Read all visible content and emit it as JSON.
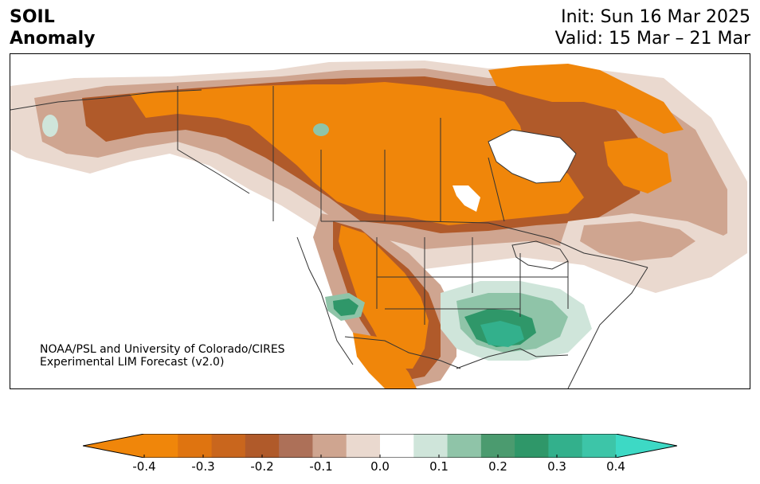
{
  "title": {
    "line1": "SOIL",
    "line2": "Anomaly",
    "init": "Init: Sun 16 Mar 2025",
    "valid": "Valid: 15 Mar – 21 Mar"
  },
  "credit": {
    "line1": "NOAA/PSL and University of Colorado/CIRES",
    "line2": "Experimental LIM Forecast (v2.0)"
  },
  "colorbar": {
    "tick_labels": [
      "-0.4",
      "-0.3",
      "-0.2",
      "-0.1",
      "0.0",
      "0.1",
      "0.2",
      "0.3",
      "0.4"
    ],
    "colors": {
      "low_extend": "#f0860a",
      "bins": [
        "#f0860a",
        "#df7410",
        "#c9661d",
        "#b05a2a",
        "#ad7058",
        "#cfa590",
        "#ead9cf",
        "#ffffff",
        "#cfe5da",
        "#8fc4a8",
        "#4b9b6f",
        "#2f9769",
        "#33b08c",
        "#3dc5a8"
      ],
      "high_extend": "#3dd9c5"
    }
  },
  "map": {
    "colors": {
      "strong_dry": "#f0860a",
      "dry": "#c9661d",
      "mid_dry": "#b05a2a",
      "light_dry": "#cfa590",
      "faint_dry": "#ead9cf",
      "faint_wet": "#cfe5da",
      "light_wet": "#8fc4a8",
      "wet": "#2f9769",
      "strong_wet": "#33b08c",
      "border": "#333333"
    }
  }
}
